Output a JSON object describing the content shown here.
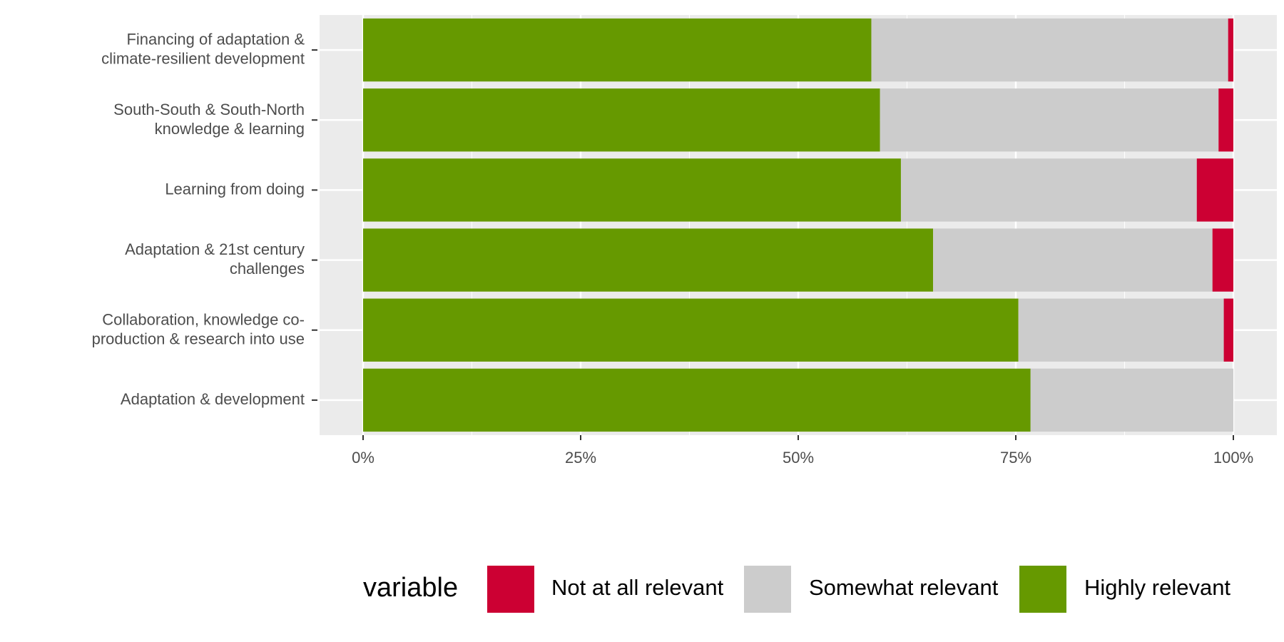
{
  "chart_data": {
    "type": "stacked-bar-horizontal",
    "categories": [
      "Financing of adaptation &\nclimate-resilient development",
      "South-South & South-North\nknowledge & learning",
      "Learning from doing",
      "Adaptation & 21st century\nchallenges",
      "Collaboration, knowledge co-\nproduction & research into use",
      "Adaptation & development"
    ],
    "series": [
      {
        "name": "Not at all relevant",
        "color": "#cc0033",
        "values": [
          0.6,
          1.7,
          4.2,
          2.4,
          1.1,
          0
        ]
      },
      {
        "name": "Somewhat relevant",
        "color": "#cccccc",
        "values": [
          41.0,
          38.9,
          34.0,
          32.1,
          23.6,
          23.3
        ]
      },
      {
        "name": "Highly relevant",
        "color": "#669900",
        "values": [
          58.4,
          59.4,
          61.8,
          65.5,
          75.3,
          76.7
        ]
      }
    ],
    "legend_title": "variable",
    "legend_position": "bottom",
    "xlim": [
      -5,
      105
    ],
    "xticks": [
      {
        "value": 0,
        "label": "0%"
      },
      {
        "value": 25,
        "label": "25%"
      },
      {
        "value": 50,
        "label": "50%"
      },
      {
        "value": 75,
        "label": "75%"
      },
      {
        "value": 100,
        "label": "100%"
      }
    ],
    "grid": true
  }
}
